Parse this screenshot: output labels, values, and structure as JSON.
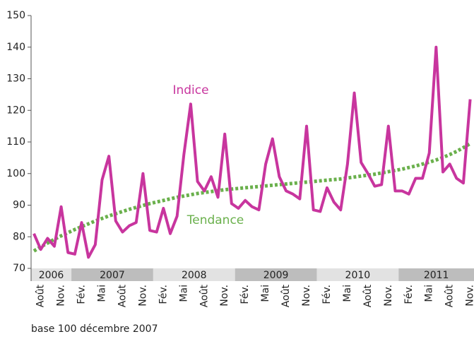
{
  "chart_data": {
    "type": "line",
    "categories": [
      null,
      "Août",
      null,
      null,
      "Nov.",
      null,
      null,
      "Fév.",
      null,
      null,
      "Mai",
      null,
      null,
      "Août",
      null,
      null,
      "Nov.",
      null,
      null,
      "Fév.",
      null,
      null,
      "Mai",
      null,
      null,
      "Août",
      null,
      null,
      "Nov.",
      null,
      null,
      "Fév.",
      null,
      null,
      "Mai",
      null,
      null,
      "Août",
      null,
      null,
      "Nov.",
      null,
      null,
      "Fév.",
      null,
      null,
      "Mai",
      null,
      null,
      "Août",
      null,
      null,
      "Nov.",
      null,
      null,
      "Fév.",
      null,
      null,
      "Mai",
      null,
      null,
      "Août",
      null,
      null,
      "Nov."
    ],
    "years": [
      "2006",
      "2007",
      "2008",
      "2009",
      "2010",
      "2011"
    ],
    "series": [
      {
        "name": "Indice",
        "color": "#c8359e",
        "values": [
          81,
          76,
          79.5,
          77,
          89.5,
          75,
          74.5,
          84.5,
          73.5,
          77.5,
          98,
          105.5,
          85,
          81.5,
          83.5,
          84.5,
          100,
          82,
          81.5,
          89,
          81,
          86.5,
          106,
          122,
          97.5,
          94.5,
          99,
          92.5,
          112.5,
          90.5,
          89,
          91.5,
          89.5,
          88.5,
          103,
          111,
          99,
          94.5,
          93.5,
          92,
          115,
          88.5,
          88,
          95.5,
          91,
          88.5,
          103,
          125.5,
          103.5,
          100,
          96,
          96.5,
          115,
          94.5,
          94.5,
          93.5,
          98.5,
          98.5,
          106.5,
          140,
          100.5,
          103,
          98.5,
          97,
          123.5
        ]
      },
      {
        "name": "Tendance",
        "color": "#6ab04c",
        "dotted": true,
        "values": [
          75.5,
          76.8,
          78,
          79.2,
          80.3,
          81.3,
          82.3,
          83.2,
          84.1,
          85,
          85.8,
          86.6,
          87.3,
          88,
          88.7,
          89.3,
          89.9,
          90.5,
          91,
          91.5,
          92,
          92.5,
          92.9,
          93.3,
          93.7,
          94,
          94.3,
          94.6,
          94.9,
          95.1,
          95.3,
          95.5,
          95.7,
          95.9,
          96.1,
          96.3,
          96.5,
          96.7,
          96.9,
          97.1,
          97.3,
          97.5,
          97.7,
          97.9,
          98.1,
          98.3,
          98.6,
          98.9,
          99.2,
          99.5,
          99.8,
          100.2,
          100.6,
          101,
          101.4,
          101.9,
          102.4,
          103,
          103.6,
          104.3,
          105.1,
          106,
          107,
          108.2,
          109.5
        ]
      }
    ],
    "ylim": [
      70,
      150
    ],
    "yticks": [
      70,
      80,
      90,
      100,
      110,
      120,
      130,
      140,
      150
    ],
    "footnote": "base 100 décembre 2007"
  }
}
